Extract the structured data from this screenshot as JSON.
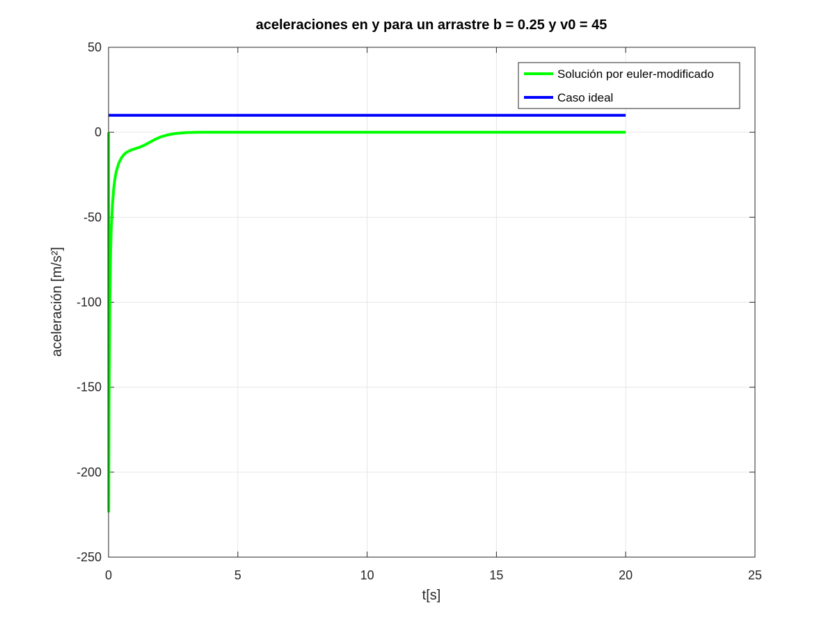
{
  "chart_data": {
    "type": "line",
    "title": "aceleraciones en y para un arrastre b = 0.25 y  v0 = 45",
    "xlabel": "t[s]",
    "ylabel": "aceleración [m/s²]",
    "xlim": [
      0,
      25
    ],
    "ylim": [
      -250,
      50
    ],
    "xticks": [
      0,
      5,
      10,
      15,
      20,
      25
    ],
    "yticks": [
      -250,
      -200,
      -150,
      -100,
      -50,
      0,
      50
    ],
    "grid": true,
    "legend_position": "top-right",
    "series": [
      {
        "name": "Solución por euler-modificado",
        "color": "#00ff00",
        "x": [
          0,
          0.005,
          0.02,
          0.05,
          0.08,
          0.1,
          0.15,
          0.2,
          0.25,
          0.3,
          0.4,
          0.5,
          0.6,
          0.7,
          0.8,
          0.9,
          1.0,
          1.2,
          1.4,
          1.6,
          1.8,
          2.0,
          2.3,
          2.6,
          3.0,
          3.5,
          4.0,
          5,
          10,
          15,
          20
        ],
        "values": [
          0,
          -223,
          -160,
          -100,
          -70,
          -58,
          -43,
          -33,
          -27,
          -23,
          -18,
          -15,
          -13,
          -11.8,
          -11,
          -10.3,
          -9.8,
          -8.8,
          -7.5,
          -5.8,
          -4.2,
          -2.8,
          -1.5,
          -0.7,
          -0.2,
          0,
          0,
          0,
          0,
          0,
          0
        ]
      },
      {
        "name": "Caso ideal",
        "color": "#0000ff",
        "x": [
          0,
          20
        ],
        "values": [
          10,
          10
        ]
      }
    ]
  }
}
